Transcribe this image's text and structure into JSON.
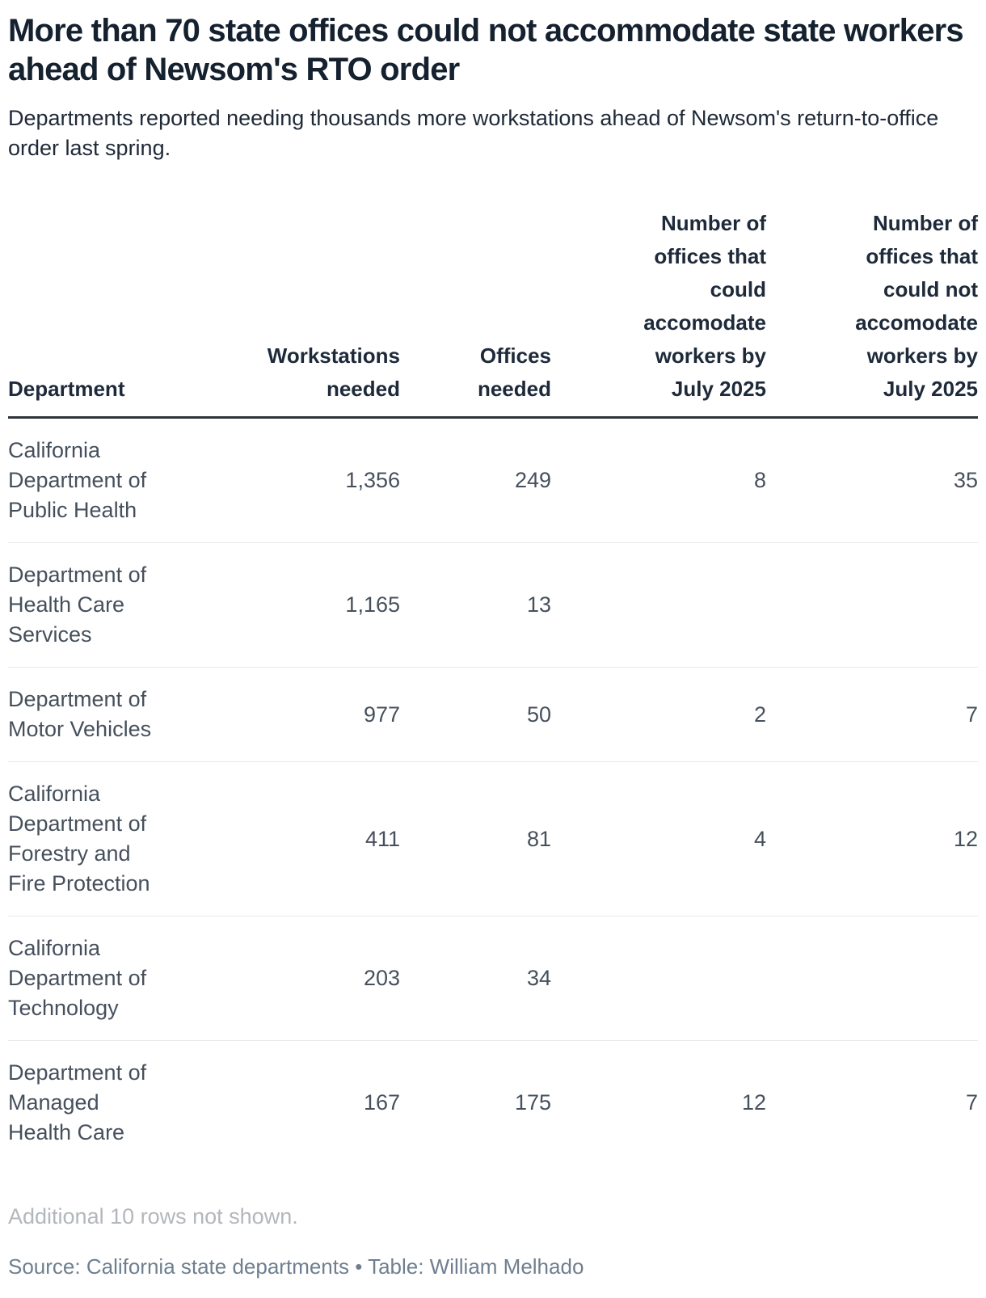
{
  "header": {
    "title": "More than 70 state offices could not accommodate state workers ahead of Newsom's RTO order",
    "subtitle": "Departments reported needing thousands more workstations ahead of Newsom's return-to-office order last spring."
  },
  "table": {
    "columns": [
      {
        "id": "department",
        "label": "Department",
        "align": "left"
      },
      {
        "id": "workstations-needed",
        "label": "Workstations\nneeded",
        "align": "right"
      },
      {
        "id": "offices-needed",
        "label": "Offices\nneeded",
        "align": "right"
      },
      {
        "id": "offices-could-accomodate",
        "label": "Number of\noffices that\ncould\naccomodate\nworkers by\nJuly 2025",
        "align": "right"
      },
      {
        "id": "offices-could-not-accomodate",
        "label": "Number of\noffices that\ncould not\naccomodate\nworkers by\nJuly 2025",
        "align": "right"
      }
    ],
    "rows": [
      [
        "California\nDepartment of\nPublic Health",
        "1,356",
        "249",
        "8",
        "35"
      ],
      [
        "Department of\nHealth Care\nServices",
        "1,165",
        "13",
        "",
        ""
      ],
      [
        "Department of\nMotor Vehicles",
        "977",
        "50",
        "2",
        "7"
      ],
      [
        "California\nDepartment of\nForestry and\nFire Protection",
        "411",
        "81",
        "4",
        "12"
      ],
      [
        "California\nDepartment of\nTechnology",
        "203",
        "34",
        "",
        ""
      ],
      [
        "Department of\nManaged\nHealth Care",
        "167",
        "175",
        "12",
        "7"
      ]
    ],
    "note": "Additional 10 rows not shown.",
    "source": "Source: California state departments • Table: William Melhado"
  },
  "chart_data": {
    "type": "table",
    "title": "More than 70 state offices could not accommodate state workers ahead of Newsom's RTO order",
    "subtitle": "Departments reported needing thousands more workstations ahead of Newsom's return-to-office order last spring.",
    "columns": [
      "Department",
      "Workstations needed",
      "Offices needed",
      "Number of offices that could accomodate workers by July 2025",
      "Number of offices that could not accomodate workers by July 2025"
    ],
    "rows": [
      [
        "California Department of Public Health",
        1356,
        249,
        8,
        35
      ],
      [
        "Department of Health Care Services",
        1165,
        13,
        null,
        null
      ],
      [
        "Department of Motor Vehicles",
        977,
        50,
        2,
        7
      ],
      [
        "California Department of Forestry and Fire Protection",
        411,
        81,
        4,
        12
      ],
      [
        "California Department of Technology",
        203,
        34,
        null,
        null
      ],
      [
        "Department of Managed Health Care",
        167,
        175,
        12,
        7
      ]
    ],
    "note": "Additional 10 rows not shown.",
    "source": "Source: California state departments • Table: William Melhado"
  },
  "colors": {
    "title_text": "#15212f",
    "body_text": "#46505c",
    "header_rule": "#2e3338",
    "row_divider": "#e8e8e8",
    "note_text": "#b3b7bb",
    "source_text": "#6f7f8f",
    "background": "#ffffff"
  }
}
